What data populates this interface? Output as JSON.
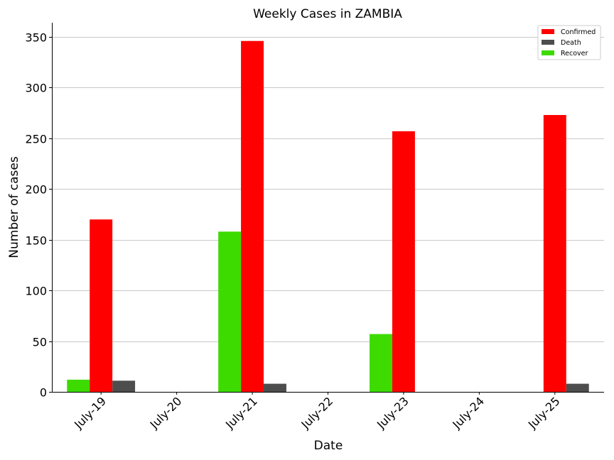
{
  "chart_data": {
    "type": "bar",
    "title": "Weekly Cases in ZAMBIA",
    "xlabel": "Date",
    "ylabel": "Number of cases",
    "categories": [
      "July-19",
      "July-20",
      "July-21",
      "July-22",
      "July-23",
      "July-24",
      "July-25"
    ],
    "series": [
      {
        "name": "Recover",
        "color": "#3ddb00",
        "values": [
          12,
          0,
          158,
          0,
          57,
          0,
          0
        ]
      },
      {
        "name": "Confirmed",
        "color": "#ff0000",
        "values": [
          170,
          0,
          346,
          0,
          257,
          0,
          273
        ]
      },
      {
        "name": "Death",
        "color": "#4d4d4d",
        "values": [
          11,
          0,
          8,
          0,
          0,
          0,
          8
        ]
      }
    ],
    "legend_order": [
      "Confirmed",
      "Death",
      "Recover"
    ],
    "ylim": [
      0,
      364
    ],
    "yticks": [
      0,
      50,
      100,
      150,
      200,
      250,
      300,
      350
    ],
    "grid": "horizontal",
    "legend_position": "top-right"
  }
}
